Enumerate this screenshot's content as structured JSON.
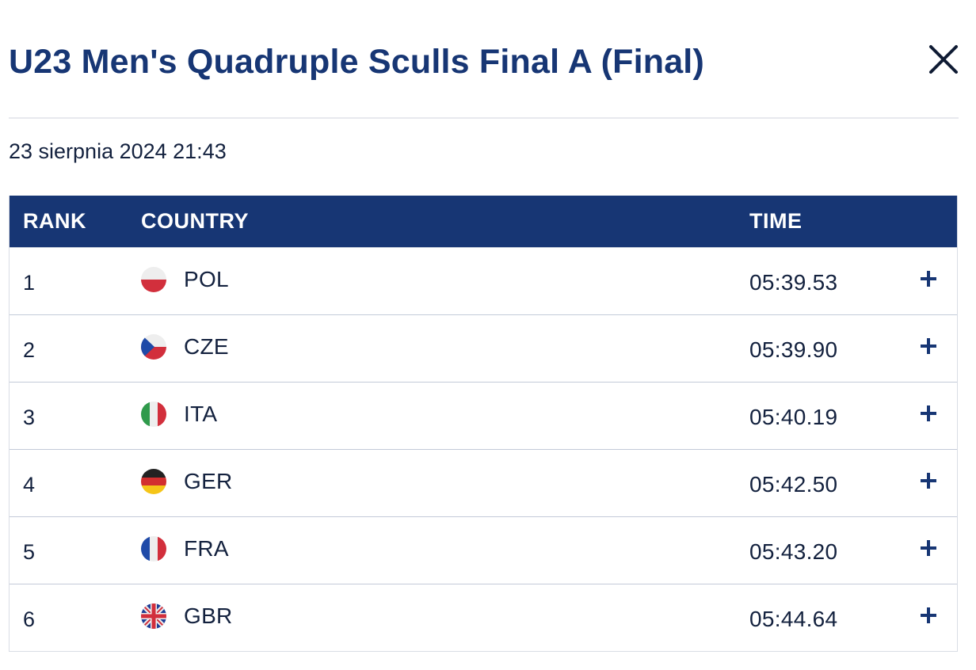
{
  "header": {
    "title": "U23 Men's Quadruple Sculls Final A (Final)",
    "close_icon": "close-icon"
  },
  "datetime": "23 sierpnia 2024 21:43",
  "table": {
    "columns": {
      "rank": "RANK",
      "country": "COUNTRY",
      "time": "TIME"
    },
    "rows": [
      {
        "rank": "1",
        "country": "POL",
        "time": "05:39.53",
        "flag_icon": "poland-flag-icon",
        "expand_icon": "plus-icon"
      },
      {
        "rank": "2",
        "country": "CZE",
        "time": "05:39.90",
        "flag_icon": "czechia-flag-icon",
        "expand_icon": "plus-icon"
      },
      {
        "rank": "3",
        "country": "ITA",
        "time": "05:40.19",
        "flag_icon": "italy-flag-icon",
        "expand_icon": "plus-icon"
      },
      {
        "rank": "4",
        "country": "GER",
        "time": "05:42.50",
        "flag_icon": "germany-flag-icon",
        "expand_icon": "plus-icon"
      },
      {
        "rank": "5",
        "country": "FRA",
        "time": "05:43.20",
        "flag_icon": "france-flag-icon",
        "expand_icon": "plus-icon"
      },
      {
        "rank": "6",
        "country": "GBR",
        "time": "05:44.64",
        "flag_icon": "great-britain-flag-icon",
        "expand_icon": "plus-icon"
      }
    ]
  },
  "colors": {
    "brand_navy": "#173674",
    "text": "#13213e",
    "row_border": "#c3cad8"
  }
}
